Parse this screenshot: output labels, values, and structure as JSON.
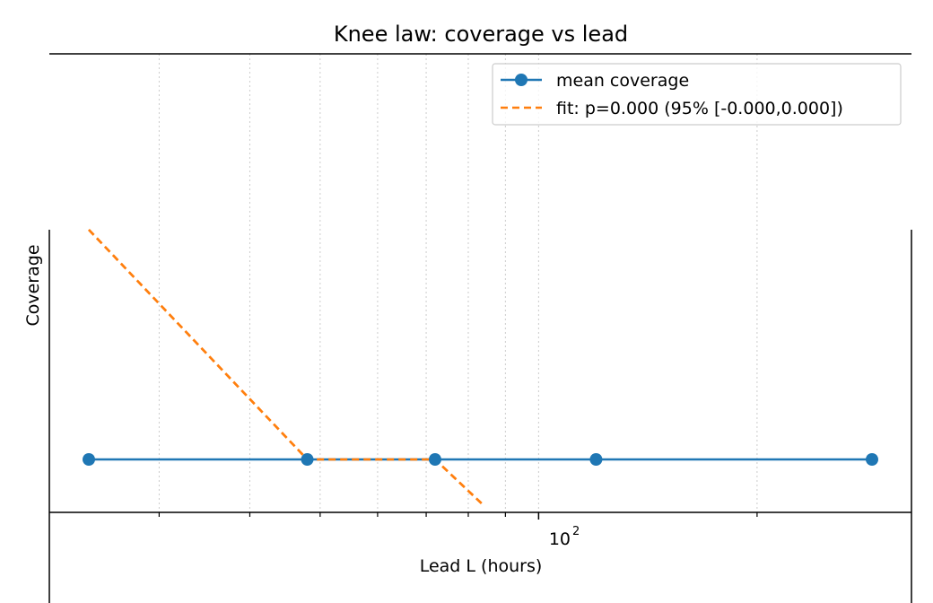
{
  "chart_data": {
    "type": "line",
    "title": "Knee law: coverage vs lead",
    "xlabel": "Lead L (hours)",
    "ylabel": "Coverage",
    "xscale": "log",
    "x_major_tick_labels": [
      {
        "value": 100,
        "base": "10",
        "exp": "2"
      }
    ],
    "x_minor_ticks": [
      30,
      40,
      50,
      60,
      70,
      80,
      90,
      200
    ],
    "grid": "x-minor, dotted",
    "legend_position": "top-right",
    "series": [
      {
        "name": "mean coverage",
        "style": "solid line with circle markers",
        "color": "#1f77b4",
        "x": [
          24,
          48,
          72,
          120,
          288
        ],
        "y": [
          0.5,
          0.5,
          0.5,
          0.5,
          0.5
        ]
      },
      {
        "name": "fit: p=0.000 (95% [-0.000,0.000])",
        "style": "dashed",
        "color": "#ff7f0e",
        "x": [
          24,
          48,
          72,
          84
        ],
        "y": [
          0.9,
          0.5,
          0.5,
          0.42
        ]
      }
    ]
  }
}
